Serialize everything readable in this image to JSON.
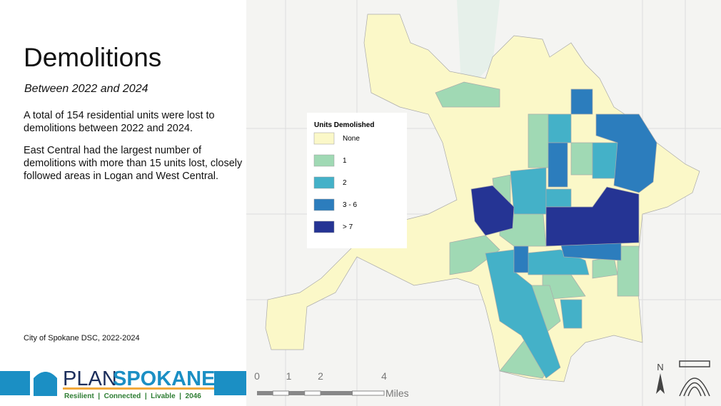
{
  "header": {
    "title": "Demolitions",
    "subtitle": "Between 2022 and 2024"
  },
  "body": {
    "paragraphs": [
      "A total of 154 residential units were lost to demolitions between 2022 and 2024.",
      "East Central had the largest number of demolitions with more than 15 units lost, closely followed areas in Logan and West Central."
    ],
    "source": "City of Spokane DSC, 2022-2024"
  },
  "legend": {
    "title": "Units Demolished",
    "items": [
      {
        "label": "None",
        "color": "#fbf8c8"
      },
      {
        "label": "1",
        "color": "#a0d9b4"
      },
      {
        "label": "2",
        "color": "#44b1c8"
      },
      {
        "label": "3 - 6",
        "color": "#2c7dbd"
      },
      {
        "label": "> 7",
        "color": "#253494"
      }
    ]
  },
  "scale": {
    "ticks": [
      0,
      1,
      2,
      4
    ],
    "unit": "Miles"
  },
  "north": "N",
  "logo": {
    "plan": "PLAN",
    "spokane": "SPOKANE",
    "tagline": "Resilient  |  Connected  |  Livable  |  2046"
  }
}
